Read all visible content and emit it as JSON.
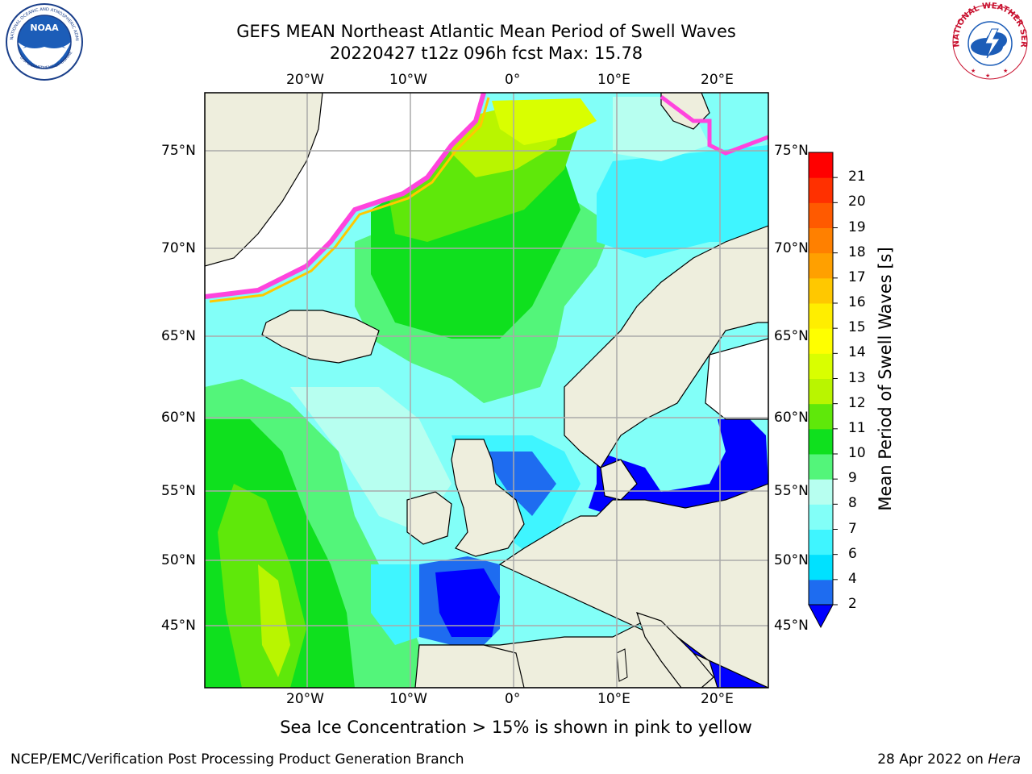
{
  "title": {
    "line1": "GEFS MEAN Northeast Atlantic Mean Period of Swell Waves",
    "line2": "20220427 t12z 096h fcst   Max: 15.78"
  },
  "logos": {
    "left": {
      "name": "NOAA",
      "ring_text": "NATIONAL OCEANIC AND ATMOSPHERIC ADMINISTRATION · U.S. DEPARTMENT OF COMMERCE"
    },
    "right": {
      "name": "NATIONAL WEATHER SERVICE"
    }
  },
  "map": {
    "lon_labels": [
      "20°W",
      "10°W",
      "0°",
      "10°E",
      "20°E"
    ],
    "lat_labels": [
      "75°N",
      "70°N",
      "65°N",
      "60°N",
      "55°N",
      "50°N",
      "45°N"
    ],
    "lon_range": [
      -30,
      25
    ],
    "lat_range": [
      41,
      78
    ],
    "grid": true,
    "ice_note": "Sea Ice Concentration > 15% is shown in pink to yellow"
  },
  "colorbar": {
    "label": "Mean Period of Swell Waves [s]",
    "ticks": [
      "2",
      "4",
      "6",
      "7",
      "8",
      "9",
      "10",
      "11",
      "12",
      "13",
      "14",
      "15",
      "16",
      "17",
      "18",
      "19",
      "20",
      "21"
    ],
    "colors": [
      "#1e6cf0",
      "#00e1ff",
      "#3ff5ff",
      "#82fff8",
      "#b7fff0",
      "#53f57a",
      "#0fe01e",
      "#5fe80a",
      "#b9f500",
      "#d9ff00",
      "#ffff00",
      "#ffee00",
      "#ffc800",
      "#ffa000",
      "#ff8000",
      "#ff5a00",
      "#ff3000",
      "#ff0000"
    ],
    "under_color": "#0000ff"
  },
  "footer": {
    "left": "NCEP/EMC/Verification Post Processing Product Generation Branch",
    "right_date": "28 Apr 2022 on",
    "right_host": "Hera"
  }
}
